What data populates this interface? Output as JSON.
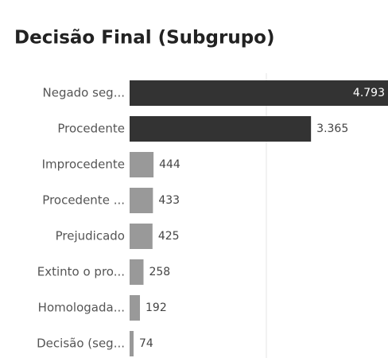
{
  "chart_data": {
    "type": "bar",
    "orientation": "horizontal",
    "title": "Decisão Final (Subgrupo)",
    "categories": [
      "Negado seg...",
      "Procedente",
      "Improcedente",
      "Procedente ...",
      "Prejudicado",
      "Extinto o pro...",
      "Homologada...",
      "Decisão (seg..."
    ],
    "values": [
      4793,
      3365,
      444,
      433,
      425,
      258,
      192,
      74
    ],
    "value_labels": [
      "4.793",
      "3.365",
      "444",
      "433",
      "425",
      "258",
      "192",
      "74"
    ],
    "colors": [
      "#333333",
      "#333333",
      "#999999",
      "#999999",
      "#999999",
      "#999999",
      "#999999",
      "#999999"
    ]
  }
}
